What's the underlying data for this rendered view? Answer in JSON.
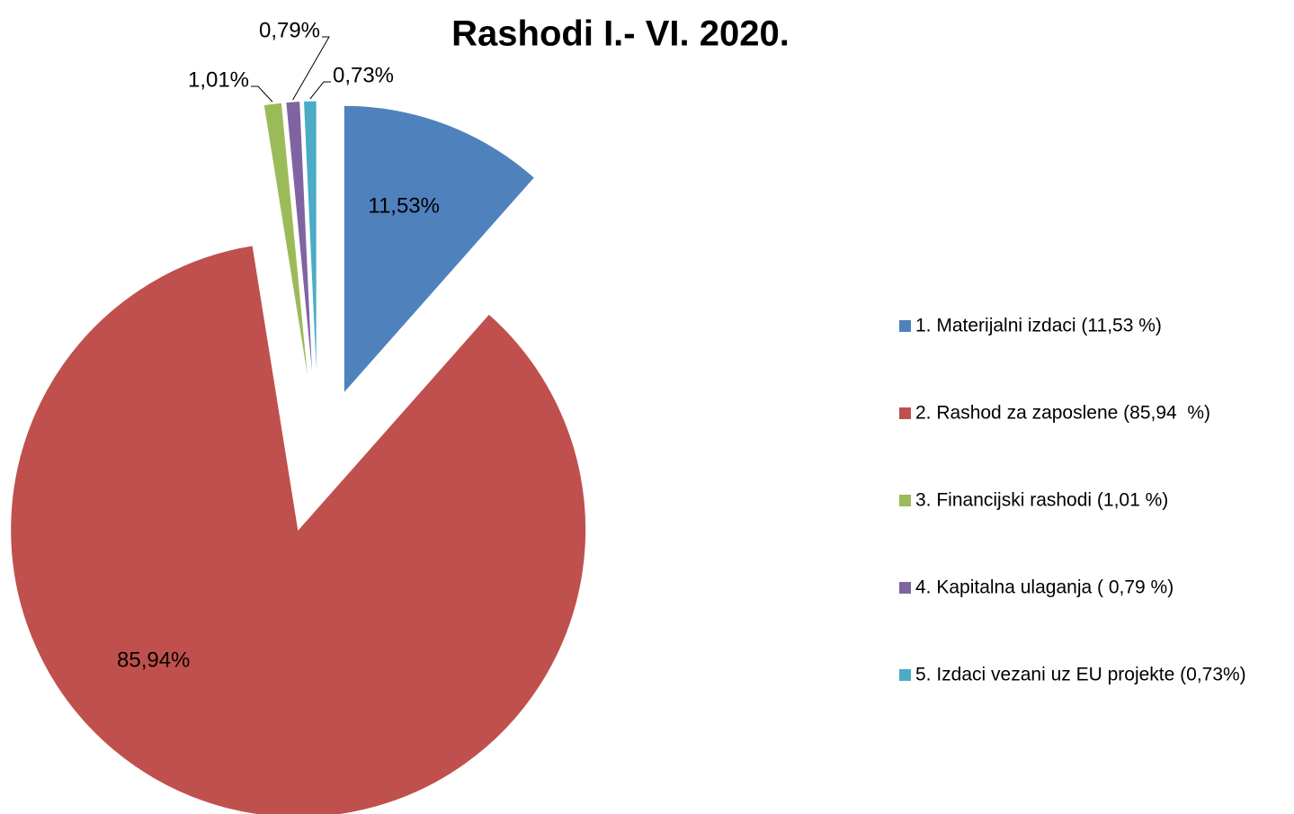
{
  "chart_data": {
    "type": "pie",
    "title": "Rashodi I.- VI. 2020.",
    "categories": [
      "1. Materijalni izdaci (11,53 %)",
      "2. Rashod za zaposlene (85,94  %)",
      "3. Financijski rashodi (1,01 %)",
      "4. Kapitalna ulaganja ( 0,79 %)",
      "5. Izdaci vezani uz EU projekte (0,73%)"
    ],
    "values": [
      11.53,
      85.94,
      1.01,
      0.79,
      0.73
    ],
    "value_labels": [
      "11,53%",
      "85,94%",
      "1,01%",
      "0,79%",
      "0,73%"
    ],
    "colors": [
      "#4f81bd",
      "#c0504d",
      "#9bbb59",
      "#8064a2",
      "#4bacc6"
    ],
    "legend": "right"
  }
}
